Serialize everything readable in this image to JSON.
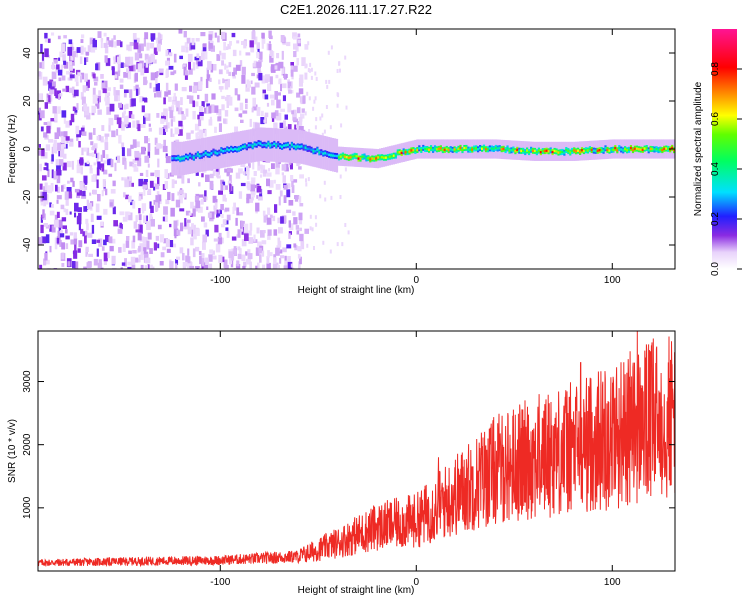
{
  "title": "C2E1.2026.111.17.27.R22",
  "colors": {
    "snr_line": "#ee2a24",
    "frame": "#000000"
  },
  "chart_data": [
    {
      "type": "heatmap",
      "title": "C2E1.2026.111.17.27.R22",
      "xlabel": "Height of straight line (km)",
      "ylabel": "Frequency (Hz)",
      "xlim": [
        -193,
        132
      ],
      "ylim": [
        -50,
        50
      ],
      "x_ticks": [
        -100,
        0,
        100
      ],
      "y_ticks": [
        -40,
        -20,
        0,
        20,
        40
      ],
      "colorbar": {
        "label": "Normalized spectral amplitude",
        "range": [
          0,
          0.96
        ],
        "ticks": [
          0.0,
          0.2,
          0.4,
          0.6,
          0.8
        ],
        "colormap": "rainbow (white-purple-blue-cyan-green-yellow-red-magenta)"
      },
      "ridge": {
        "description": "dominant frequency trace",
        "x": [
          -120,
          -100,
          -80,
          -60,
          -40,
          -20,
          0,
          20,
          40,
          60,
          80,
          100,
          130
        ],
        "freq_hz": [
          -4,
          -1,
          2,
          1,
          -3,
          -4,
          0,
          0,
          0,
          -1,
          -1,
          0,
          0
        ]
      },
      "noise_region_x": [
        -193,
        -57
      ]
    },
    {
      "type": "line",
      "xlabel": "Height of straight line (km)",
      "ylabel": "SNR (10 * v/v)",
      "xlim": [
        -193,
        132
      ],
      "ylim": [
        0,
        3800
      ],
      "x_ticks": [
        -100,
        0,
        100
      ],
      "y_ticks": [
        1000,
        2000,
        3000
      ],
      "series": [
        {
          "name": "SNR",
          "x": [
            -193,
            -150,
            -100,
            -60,
            -40,
            -20,
            0,
            10,
            20,
            40,
            60,
            80,
            100,
            113,
            132
          ],
          "y": [
            130,
            150,
            170,
            230,
            450,
            700,
            800,
            1000,
            1200,
            1600,
            1800,
            1950,
            2150,
            2300,
            2500
          ]
        }
      ],
      "spikes": [
        {
          "x": 11,
          "y": 1800
        },
        {
          "x": 84,
          "y": 3300
        },
        {
          "x": 111,
          "y": 3300
        },
        {
          "x": 113,
          "y": 3800
        }
      ]
    }
  ]
}
